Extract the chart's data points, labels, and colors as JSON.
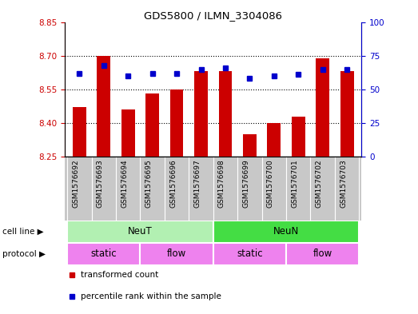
{
  "title": "GDS5800 / ILMN_3304086",
  "samples": [
    "GSM1576692",
    "GSM1576693",
    "GSM1576694",
    "GSM1576695",
    "GSM1576696",
    "GSM1576697",
    "GSM1576698",
    "GSM1576699",
    "GSM1576700",
    "GSM1576701",
    "GSM1576702",
    "GSM1576703"
  ],
  "bar_values": [
    8.47,
    8.7,
    8.46,
    8.53,
    8.55,
    8.63,
    8.63,
    8.35,
    8.4,
    8.43,
    8.69,
    8.63
  ],
  "blue_values": [
    62,
    68,
    60,
    62,
    62,
    65,
    66,
    58,
    60,
    61,
    65,
    65
  ],
  "bar_bottom": 8.25,
  "ylim_left": [
    8.25,
    8.85
  ],
  "ylim_right": [
    0,
    100
  ],
  "yticks_left": [
    8.25,
    8.4,
    8.55,
    8.7,
    8.85
  ],
  "yticks_right": [
    0,
    25,
    50,
    75,
    100
  ],
  "bar_color": "#cc0000",
  "dot_color": "#0000cc",
  "cell_line_groups": [
    {
      "label": "NeuT",
      "start": 0,
      "end": 5,
      "color": "#b2f0b2"
    },
    {
      "label": "NeuN",
      "start": 6,
      "end": 11,
      "color": "#44dd44"
    }
  ],
  "protocol_groups": [
    {
      "label": "static",
      "start": 0,
      "end": 2,
      "color": "#ee82ee"
    },
    {
      "label": "flow",
      "start": 3,
      "end": 5,
      "color": "#ee82ee"
    },
    {
      "label": "static",
      "start": 6,
      "end": 8,
      "color": "#ee82ee"
    },
    {
      "label": "flow",
      "start": 9,
      "end": 11,
      "color": "#ee82ee"
    }
  ],
  "legend_items": [
    {
      "label": "transformed count",
      "color": "#cc0000"
    },
    {
      "label": "percentile rank within the sample",
      "color": "#0000cc"
    }
  ],
  "axis_color_left": "#cc0000",
  "axis_color_right": "#0000cc",
  "row_label_cell_line": "cell line",
  "row_label_protocol": "protocol",
  "tick_area_bg": "#c8c8c8",
  "grid_yticks": [
    8.4,
    8.55,
    8.7
  ],
  "bar_width": 0.55
}
